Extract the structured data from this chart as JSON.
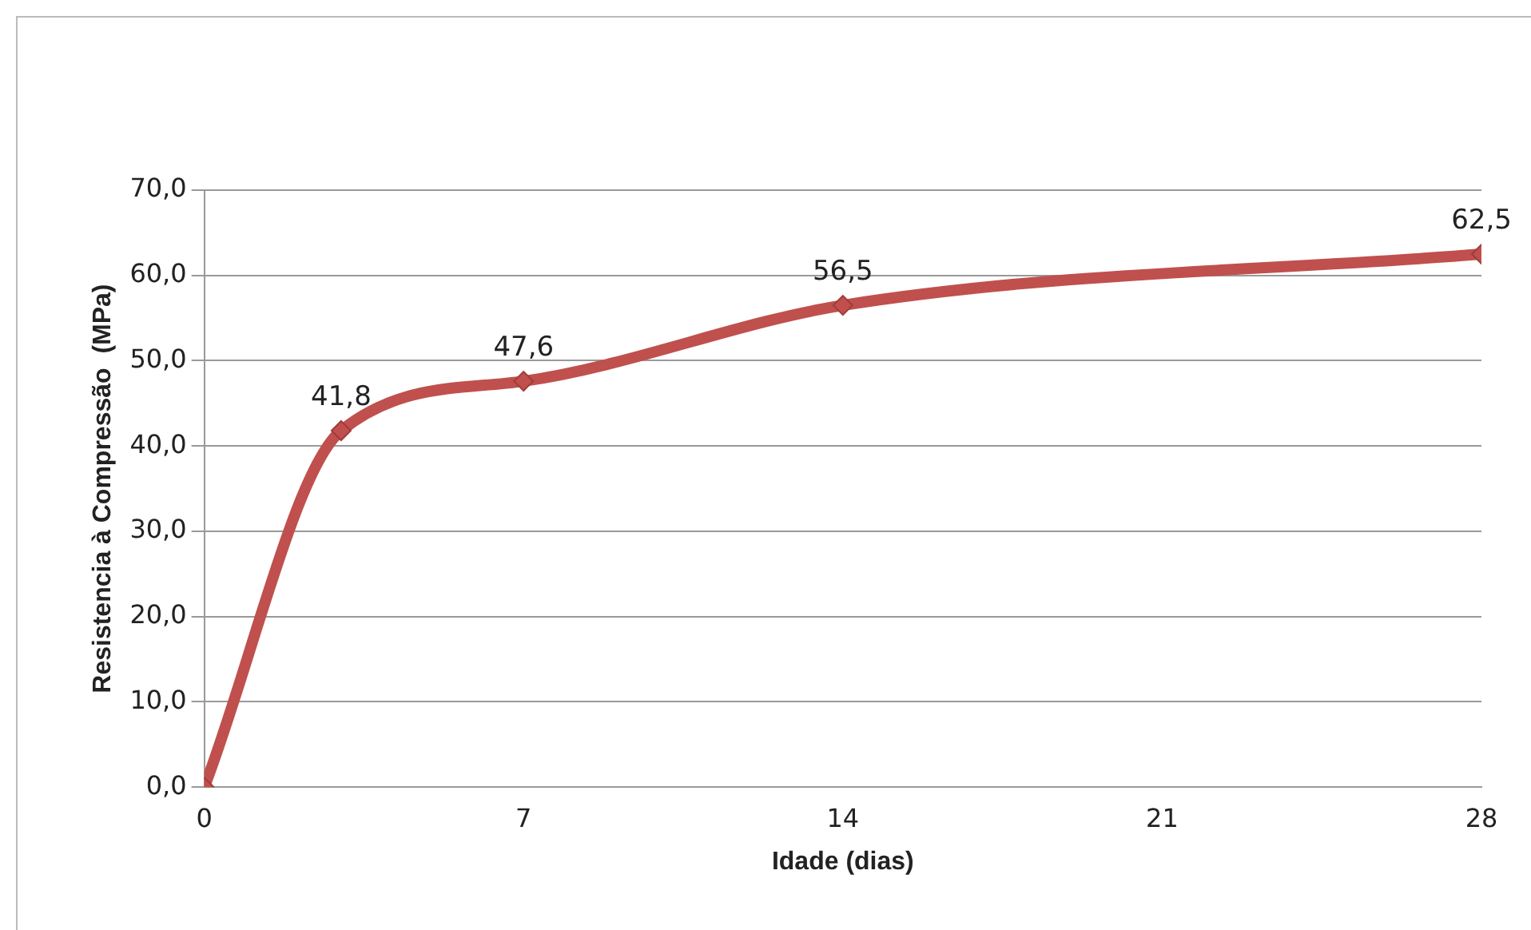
{
  "chart_data": {
    "type": "line",
    "xlabel": "Idade (dias)",
    "ylabel": "Resistencia à Compressão  (MPa)",
    "x": [
      0,
      3,
      7,
      14,
      28
    ],
    "series": [
      {
        "color": "#c0504d",
        "values": [
          0,
          41.8,
          47.6,
          56.5,
          62.5
        ],
        "value_labels": [
          null,
          "41,8",
          "47,6",
          "56,5",
          "62,5"
        ]
      }
    ],
    "xlim": [
      0,
      28
    ],
    "xticks": [
      0,
      7,
      14,
      21,
      28
    ],
    "ylim": [
      0,
      70
    ],
    "yticks": [
      {
        "value": 0,
        "label": "0,0"
      },
      {
        "value": 10,
        "label": "10,0"
      },
      {
        "value": 20,
        "label": "20,0"
      },
      {
        "value": 30,
        "label": "30,0"
      },
      {
        "value": 40,
        "label": "40,0"
      },
      {
        "value": 50,
        "label": "50,0"
      },
      {
        "value": 60,
        "label": "60,0"
      },
      {
        "value": 70,
        "label": "70,0"
      }
    ],
    "grid": "y",
    "legend": false,
    "marker": "diamond",
    "line_style": "solid"
  }
}
